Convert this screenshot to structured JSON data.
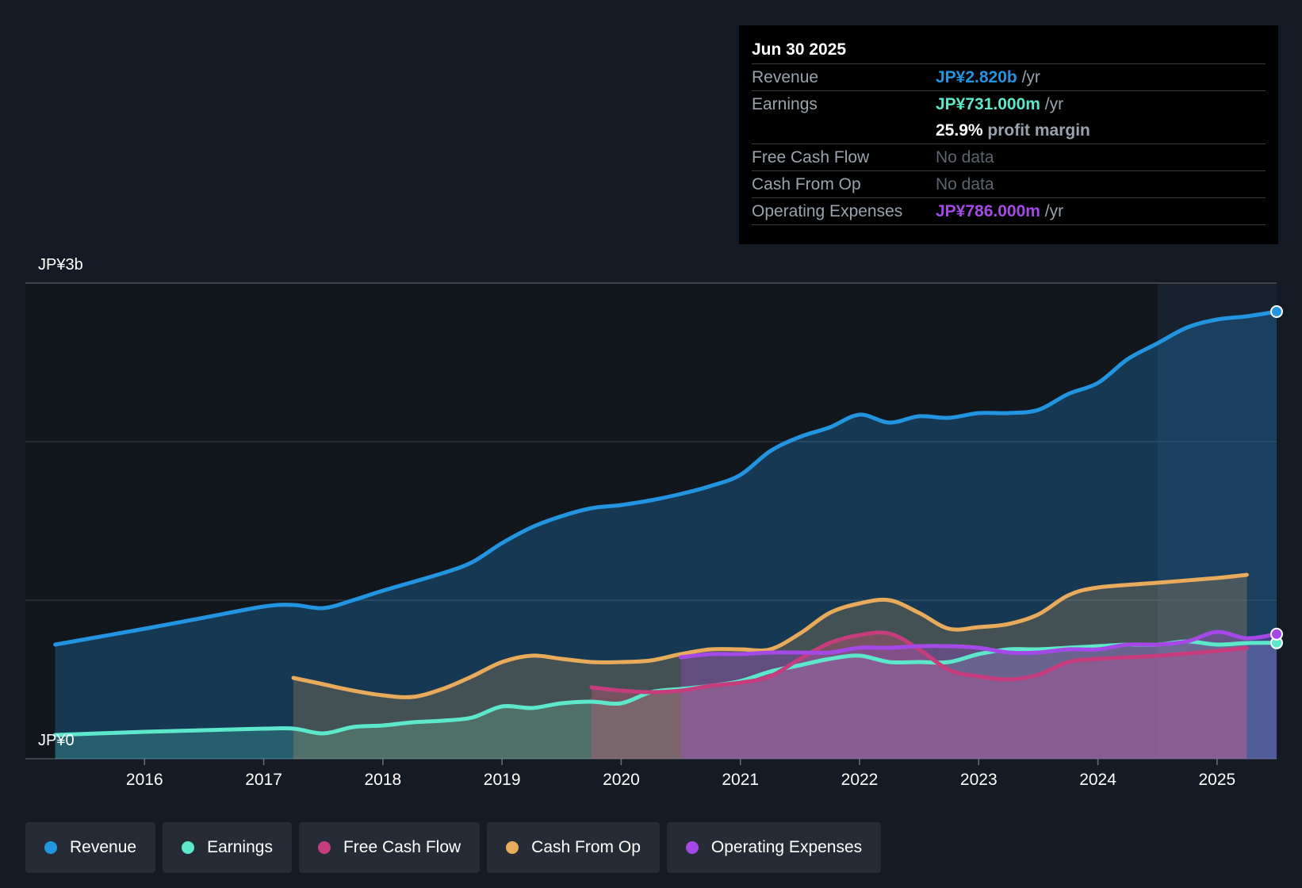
{
  "chart_data": {
    "type": "area",
    "title": "",
    "y_axis": {
      "min_label": "JP¥0",
      "max_label": "JP¥3b",
      "ylim": [
        0,
        3.0
      ],
      "unit": "JP¥ billions"
    },
    "x_axis": {
      "ticks": [
        "2016",
        "2017",
        "2018",
        "2019",
        "2020",
        "2021",
        "2022",
        "2023",
        "2024",
        "2025"
      ],
      "xlim": [
        2015.0,
        2025.5
      ]
    },
    "highlight_start": 2024.5,
    "series": [
      {
        "name": "Revenue",
        "color": "#2394df",
        "points": [
          [
            2015.25,
            0.72
          ],
          [
            2016.0,
            0.82
          ],
          [
            2016.5,
            0.89
          ],
          [
            2017.0,
            0.96
          ],
          [
            2017.25,
            0.97
          ],
          [
            2017.5,
            0.95
          ],
          [
            2017.75,
            1.0
          ],
          [
            2018.0,
            1.06
          ],
          [
            2018.5,
            1.17
          ],
          [
            2018.75,
            1.24
          ],
          [
            2019.0,
            1.36
          ],
          [
            2019.25,
            1.46
          ],
          [
            2019.5,
            1.53
          ],
          [
            2019.75,
            1.58
          ],
          [
            2020.0,
            1.6
          ],
          [
            2020.25,
            1.63
          ],
          [
            2020.5,
            1.67
          ],
          [
            2020.75,
            1.72
          ],
          [
            2021.0,
            1.79
          ],
          [
            2021.25,
            1.94
          ],
          [
            2021.5,
            2.03
          ],
          [
            2021.75,
            2.09
          ],
          [
            2022.0,
            2.17
          ],
          [
            2022.25,
            2.12
          ],
          [
            2022.5,
            2.16
          ],
          [
            2022.75,
            2.15
          ],
          [
            2023.0,
            2.18
          ],
          [
            2023.25,
            2.18
          ],
          [
            2023.5,
            2.2
          ],
          [
            2023.75,
            2.3
          ],
          [
            2024.0,
            2.37
          ],
          [
            2024.25,
            2.52
          ],
          [
            2024.5,
            2.62
          ],
          [
            2024.75,
            2.72
          ],
          [
            2025.0,
            2.77
          ],
          [
            2025.25,
            2.79
          ],
          [
            2025.5,
            2.82
          ]
        ]
      },
      {
        "name": "Earnings",
        "color": "#5ee8cb",
        "points": [
          [
            2015.25,
            0.15
          ],
          [
            2016.0,
            0.17
          ],
          [
            2016.5,
            0.18
          ],
          [
            2017.0,
            0.19
          ],
          [
            2017.25,
            0.19
          ],
          [
            2017.5,
            0.16
          ],
          [
            2017.75,
            0.2
          ],
          [
            2018.0,
            0.21
          ],
          [
            2018.25,
            0.23
          ],
          [
            2018.5,
            0.24
          ],
          [
            2018.75,
            0.26
          ],
          [
            2019.0,
            0.33
          ],
          [
            2019.25,
            0.32
          ],
          [
            2019.5,
            0.35
          ],
          [
            2019.75,
            0.36
          ],
          [
            2020.0,
            0.35
          ],
          [
            2020.25,
            0.42
          ],
          [
            2020.5,
            0.44
          ],
          [
            2020.75,
            0.46
          ],
          [
            2021.0,
            0.49
          ],
          [
            2021.25,
            0.55
          ],
          [
            2021.5,
            0.59
          ],
          [
            2021.75,
            0.63
          ],
          [
            2022.0,
            0.65
          ],
          [
            2022.25,
            0.61
          ],
          [
            2022.5,
            0.61
          ],
          [
            2022.75,
            0.61
          ],
          [
            2023.0,
            0.66
          ],
          [
            2023.25,
            0.69
          ],
          [
            2023.5,
            0.69
          ],
          [
            2023.75,
            0.7
          ],
          [
            2024.0,
            0.71
          ],
          [
            2024.25,
            0.72
          ],
          [
            2024.5,
            0.72
          ],
          [
            2024.75,
            0.74
          ],
          [
            2025.0,
            0.72
          ],
          [
            2025.25,
            0.73
          ],
          [
            2025.5,
            0.731
          ]
        ]
      },
      {
        "name": "Free Cash Flow",
        "color": "#c63d7d",
        "points": [
          [
            2019.75,
            0.45
          ],
          [
            2020.0,
            0.43
          ],
          [
            2020.25,
            0.42
          ],
          [
            2020.5,
            0.43
          ],
          [
            2020.75,
            0.46
          ],
          [
            2021.0,
            0.48
          ],
          [
            2021.25,
            0.52
          ],
          [
            2021.5,
            0.63
          ],
          [
            2021.75,
            0.73
          ],
          [
            2022.0,
            0.78
          ],
          [
            2022.25,
            0.79
          ],
          [
            2022.5,
            0.69
          ],
          [
            2022.75,
            0.56
          ],
          [
            2023.0,
            0.52
          ],
          [
            2023.25,
            0.5
          ],
          [
            2023.5,
            0.53
          ],
          [
            2023.75,
            0.61
          ],
          [
            2024.0,
            0.63
          ],
          [
            2024.5,
            0.65
          ],
          [
            2025.0,
            0.68
          ],
          [
            2025.25,
            0.7
          ]
        ]
      },
      {
        "name": "Cash From Op",
        "color": "#e8ab5c",
        "points": [
          [
            2017.25,
            0.51
          ],
          [
            2017.5,
            0.47
          ],
          [
            2017.75,
            0.43
          ],
          [
            2018.0,
            0.4
          ],
          [
            2018.25,
            0.39
          ],
          [
            2018.5,
            0.44
          ],
          [
            2018.75,
            0.52
          ],
          [
            2019.0,
            0.61
          ],
          [
            2019.25,
            0.65
          ],
          [
            2019.5,
            0.63
          ],
          [
            2019.75,
            0.61
          ],
          [
            2020.0,
            0.61
          ],
          [
            2020.25,
            0.62
          ],
          [
            2020.5,
            0.66
          ],
          [
            2020.75,
            0.69
          ],
          [
            2021.0,
            0.69
          ],
          [
            2021.25,
            0.69
          ],
          [
            2021.5,
            0.79
          ],
          [
            2021.75,
            0.92
          ],
          [
            2022.0,
            0.98
          ],
          [
            2022.25,
            1.0
          ],
          [
            2022.5,
            0.92
          ],
          [
            2022.75,
            0.82
          ],
          [
            2023.0,
            0.83
          ],
          [
            2023.25,
            0.85
          ],
          [
            2023.5,
            0.91
          ],
          [
            2023.75,
            1.03
          ],
          [
            2024.0,
            1.08
          ],
          [
            2024.5,
            1.11
          ],
          [
            2025.0,
            1.14
          ],
          [
            2025.25,
            1.16
          ]
        ]
      },
      {
        "name": "Operating Expenses",
        "color": "#a449e6",
        "points": [
          [
            2020.5,
            0.64
          ],
          [
            2020.75,
            0.66
          ],
          [
            2021.0,
            0.66
          ],
          [
            2021.25,
            0.67
          ],
          [
            2021.5,
            0.67
          ],
          [
            2021.75,
            0.67
          ],
          [
            2022.0,
            0.7
          ],
          [
            2022.25,
            0.7
          ],
          [
            2022.5,
            0.71
          ],
          [
            2022.75,
            0.71
          ],
          [
            2023.0,
            0.7
          ],
          [
            2023.25,
            0.67
          ],
          [
            2023.5,
            0.67
          ],
          [
            2023.75,
            0.69
          ],
          [
            2024.0,
            0.69
          ],
          [
            2024.25,
            0.72
          ],
          [
            2024.5,
            0.72
          ],
          [
            2024.75,
            0.74
          ],
          [
            2025.0,
            0.8
          ],
          [
            2025.25,
            0.76
          ],
          [
            2025.5,
            0.786
          ]
        ]
      }
    ]
  },
  "tooltip": {
    "date": "Jun 30 2025",
    "rows": [
      {
        "label": "Revenue",
        "value": "JP¥2.820b",
        "unit": "/yr",
        "color": "#2394df"
      },
      {
        "label": "Earnings",
        "value": "JP¥731.000m",
        "unit": "/yr",
        "color": "#5ee8cb"
      },
      {
        "label": "",
        "value": "25.9%",
        "unit": "profit margin",
        "color": "#ffffff"
      },
      {
        "label": "Free Cash Flow",
        "value": "No data",
        "unit": "",
        "color": "#5d646d"
      },
      {
        "label": "Cash From Op",
        "value": "No data",
        "unit": "",
        "color": "#5d646d"
      },
      {
        "label": "Operating Expenses",
        "value": "JP¥786.000m",
        "unit": "/yr",
        "color": "#a449e6"
      }
    ]
  },
  "legend": [
    {
      "label": "Revenue",
      "color": "#2394df"
    },
    {
      "label": "Earnings",
      "color": "#5ee8cb"
    },
    {
      "label": "Free Cash Flow",
      "color": "#c63d7d"
    },
    {
      "label": "Cash From Op",
      "color": "#e8ab5c"
    },
    {
      "label": "Operating Expenses",
      "color": "#a449e6"
    }
  ]
}
